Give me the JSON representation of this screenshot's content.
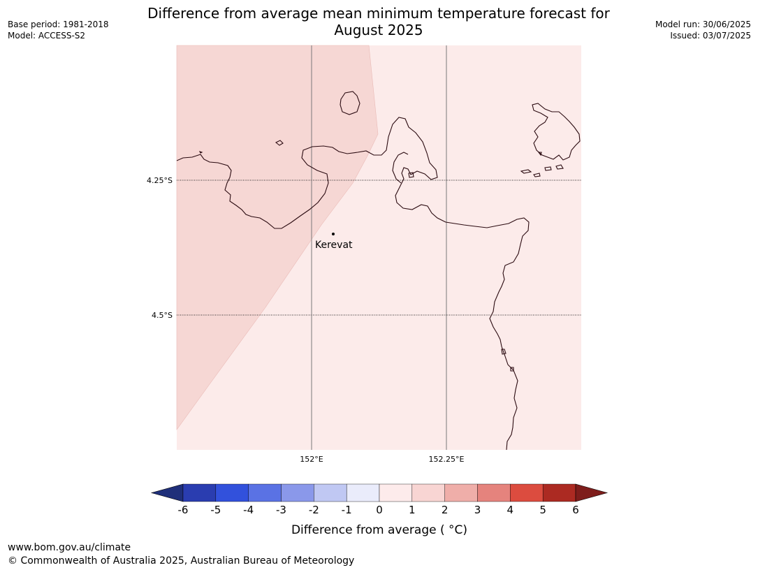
{
  "title_line1": "Difference from average mean minimum temperature forecast for",
  "title_line2": "August 2025",
  "meta": {
    "base_period": "Base period: 1981-2018",
    "model": "Model: ACCESS-S2",
    "model_run": "Model run: 30/06/2025",
    "issued": "Issued: 03/07/2025"
  },
  "map": {
    "place_label": "Kerevat",
    "lat_labels": [
      "4.25°S",
      "4.5°S"
    ],
    "lon_labels": [
      "152°E",
      "152.25°E"
    ]
  },
  "colorbar": {
    "title": "Difference from average ( °C)",
    "ticks": [
      "-6",
      "-5",
      "-4",
      "-3",
      "-2",
      "-1",
      "0",
      "1",
      "2",
      "3",
      "4",
      "5",
      "6"
    ],
    "colors": {
      "under": "#1f2f7a",
      "bins": [
        "#2a3db0",
        "#3251dc",
        "#5a72e4",
        "#8a98ea",
        "#c0c8f3",
        "#eaecfb",
        "#fdebeb",
        "#f8d5d3",
        "#efaea9",
        "#e5837d",
        "#dc4c3f",
        "#ac2a22"
      ],
      "over": "#7e1d1b"
    }
  },
  "footer": {
    "url": "www.bom.gov.au/climate",
    "copyright": "© Commonwealth of Australia 2025, Australian Bureau of Meteorology"
  }
}
